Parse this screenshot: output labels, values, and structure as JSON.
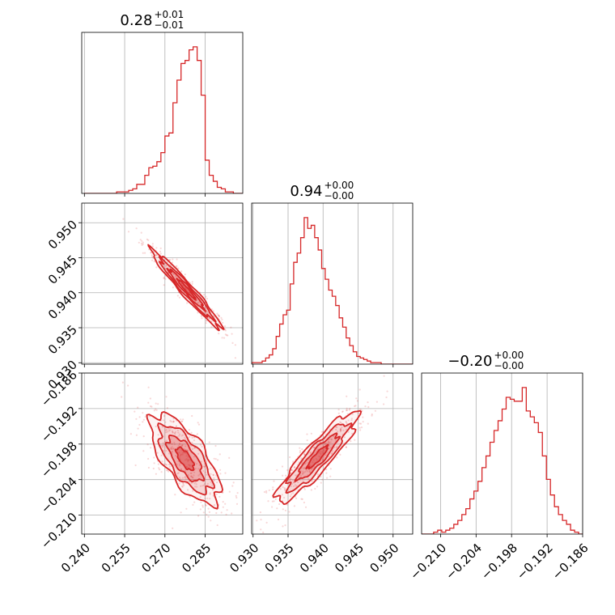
{
  "chart_data": {
    "type": "corner",
    "color": "#d62728",
    "grid": true,
    "parameters": [
      {
        "median": "0.28",
        "plus": "+0.01",
        "minus": "−0.01",
        "range": [
          0.239,
          0.299
        ],
        "ticks": [
          0.24,
          0.255,
          0.27,
          0.285
        ],
        "tick_labels": [
          "0.240",
          "0.255",
          "0.270",
          "0.285"
        ]
      },
      {
        "median": "0.94",
        "plus": "+0.00",
        "minus": "−0.00",
        "range": [
          0.9298,
          0.9528
        ],
        "ticks": [
          0.93,
          0.935,
          0.94,
          0.945,
          0.95
        ],
        "tick_labels": [
          "0.930",
          "0.935",
          "0.940",
          "0.945",
          "0.950"
        ]
      },
      {
        "median": "−0.20",
        "plus": "+0.00",
        "minus": "−0.00",
        "range": [
          -0.2132,
          -0.186
        ],
        "ticks": [
          -0.21,
          -0.204,
          -0.198,
          -0.192,
          -0.186
        ],
        "tick_labels": [
          "−0.210",
          "−0.204",
          "−0.198",
          "−0.192",
          "−0.186"
        ]
      }
    ],
    "histograms": [
      {
        "param": 0,
        "bin_start": 0.24,
        "bin_width": 0.0015,
        "counts": [
          0,
          0,
          0,
          0,
          0,
          0,
          0,
          0,
          1,
          1,
          1,
          2,
          3,
          6,
          6,
          12,
          17,
          18,
          21,
          27,
          38,
          40,
          60,
          75,
          86,
          88,
          95,
          97,
          88,
          65,
          22,
          12,
          8,
          4,
          3,
          1,
          1,
          0,
          0,
          0
        ]
      },
      {
        "param": 1,
        "bin_start": 0.9298,
        "bin_width": 0.0005,
        "counts": [
          1,
          1,
          1,
          2,
          4,
          6,
          10,
          18,
          26,
          32,
          35,
          52,
          66,
          72,
          82,
          95,
          88,
          90,
          82,
          74,
          62,
          55,
          48,
          44,
          38,
          30,
          24,
          17,
          12,
          8,
          5,
          4,
          3,
          2,
          1,
          1,
          1,
          0,
          0,
          0,
          0,
          0,
          0,
          0,
          0,
          0
        ]
      },
      {
        "param": 2,
        "bin_start": -0.2132,
        "bin_width": 0.00068,
        "counts": [
          0,
          0,
          0,
          1,
          2,
          1,
          2,
          3,
          5,
          7,
          10,
          13,
          18,
          22,
          27,
          34,
          40,
          47,
          53,
          58,
          64,
          70,
          69,
          68,
          68,
          75,
          63,
          60,
          57,
          52,
          40,
          28,
          20,
          14,
          10,
          7,
          5,
          2,
          1,
          0
        ]
      }
    ],
    "pairs": [
      {
        "x_param": 0,
        "y_param": 1,
        "center": [
          0.278,
          0.9405
        ],
        "sx": 0.0065,
        "sy": 0.0028,
        "rho": -0.97
      },
      {
        "x_param": 0,
        "y_param": 2,
        "center": [
          0.2775,
          -0.2005
        ],
        "sx": 0.0065,
        "sy": 0.0038,
        "rho": -0.7
      },
      {
        "x_param": 1,
        "y_param": 2,
        "center": [
          0.9392,
          -0.2002
        ],
        "sx": 0.0029,
        "sy": 0.0038,
        "rho": 0.9
      }
    ],
    "contour_levels_sigma": [
      0.5,
      1.0,
      1.5,
      2.0
    ]
  }
}
